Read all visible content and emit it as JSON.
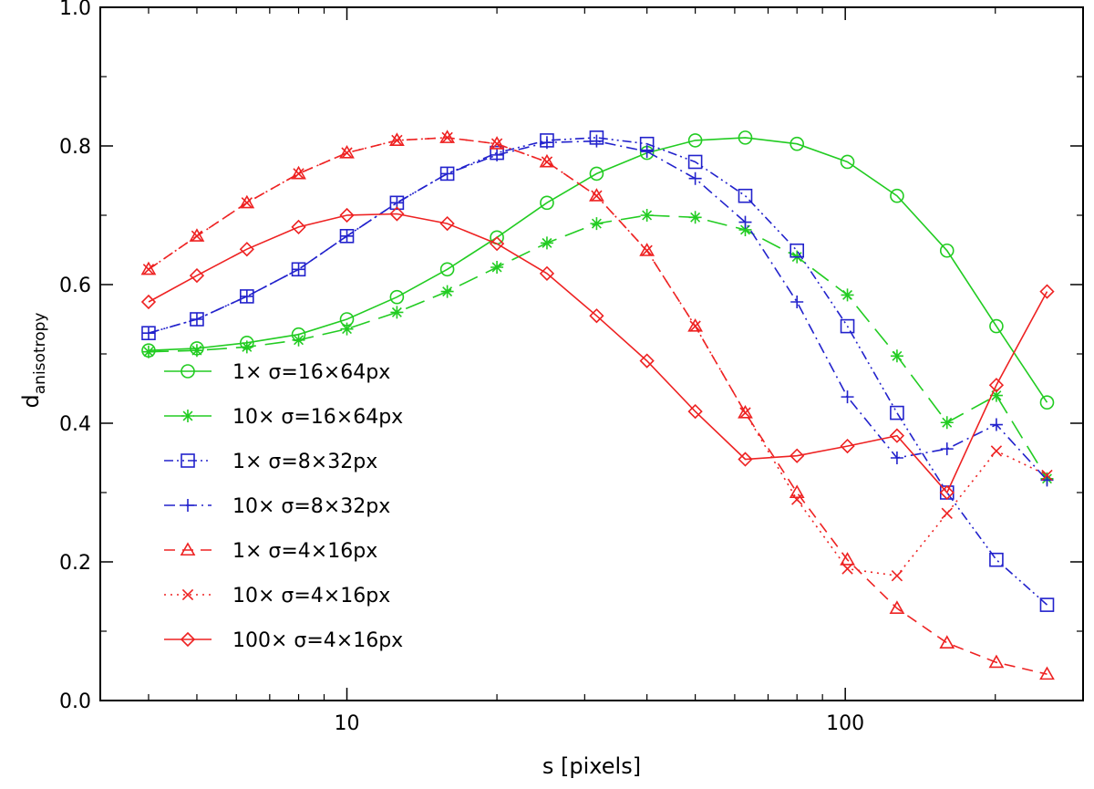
{
  "chart_data": {
    "type": "line",
    "xscale": "log",
    "xlabel": "s [pixels]",
    "ylabel_main": "d",
    "ylabel_sub": "anisotropy",
    "xlim": [
      3.2,
      300
    ],
    "ylim": [
      0.0,
      1.0
    ],
    "xticks_major": [
      10,
      100
    ],
    "xtick_labels": [
      "10",
      "100"
    ],
    "yticks": [
      0.0,
      0.2,
      0.4,
      0.6,
      0.8,
      1.0
    ],
    "ytick_labels": [
      "0.0",
      "0.2",
      "0.4",
      "0.6",
      "0.8",
      "1.0"
    ],
    "legend_position": "lower-left",
    "x": [
      4,
      5,
      6.3,
      8,
      10,
      12.6,
      15.9,
      20,
      25.2,
      31.7,
      40,
      50,
      63,
      80,
      101,
      127,
      160,
      201,
      254
    ],
    "series": [
      {
        "name": "1× σ=16×64px",
        "color": "#22cc22",
        "marker": "circle",
        "dash": "solid",
        "values": [
          0.505,
          0.508,
          0.516,
          0.528,
          0.55,
          0.582,
          0.622,
          0.668,
          0.718,
          0.76,
          0.79,
          0.808,
          0.812,
          0.803,
          0.777,
          0.728,
          0.649,
          0.54,
          0.43
        ]
      },
      {
        "name": "10× σ=16×64px",
        "color": "#22cc22",
        "marker": "asterisk",
        "dash": "longdash",
        "values": [
          0.503,
          0.505,
          0.51,
          0.52,
          0.536,
          0.56,
          0.59,
          0.625,
          0.66,
          0.688,
          0.7,
          0.697,
          0.679,
          0.64,
          0.585,
          0.497,
          0.401,
          0.44,
          0.32
        ]
      },
      {
        "name": "1× σ=8×32px",
        "color": "#2222cc",
        "marker": "square",
        "dash": "dashdotdot",
        "values": [
          0.53,
          0.55,
          0.583,
          0.622,
          0.67,
          0.718,
          0.76,
          0.79,
          0.808,
          0.812,
          0.803,
          0.777,
          0.728,
          0.649,
          0.54,
          0.415,
          0.3,
          0.203,
          0.138
        ]
      },
      {
        "name": "10× σ=8×32px",
        "color": "#2222cc",
        "marker": "plus",
        "dash": "dashdot",
        "values": [
          0.53,
          0.55,
          0.583,
          0.622,
          0.67,
          0.718,
          0.76,
          0.787,
          0.805,
          0.807,
          0.792,
          0.753,
          0.69,
          0.575,
          0.438,
          0.35,
          0.363,
          0.398,
          0.318
        ]
      },
      {
        "name": "1× σ=4×16px",
        "color": "#ee2222",
        "marker": "triangle",
        "dash": "dashed",
        "values": [
          0.622,
          0.67,
          0.718,
          0.76,
          0.79,
          0.808,
          0.812,
          0.803,
          0.777,
          0.728,
          0.649,
          0.54,
          0.415,
          0.3,
          0.203,
          0.133,
          0.083,
          0.055,
          0.038
        ]
      },
      {
        "name": "10× σ=4×16px",
        "color": "#ee2222",
        "marker": "cross",
        "dash": "dotted",
        "values": [
          0.622,
          0.67,
          0.718,
          0.76,
          0.79,
          0.808,
          0.812,
          0.803,
          0.777,
          0.728,
          0.649,
          0.54,
          0.415,
          0.29,
          0.19,
          0.18,
          0.27,
          0.36,
          0.325
        ]
      },
      {
        "name": "100× σ=4×16px",
        "color": "#ee2222",
        "marker": "diamond",
        "dash": "solid",
        "values": [
          0.575,
          0.613,
          0.651,
          0.683,
          0.7,
          0.702,
          0.688,
          0.659,
          0.616,
          0.555,
          0.49,
          0.417,
          0.348,
          0.353,
          0.367,
          0.382,
          0.3,
          0.455,
          0.59
        ]
      }
    ]
  }
}
